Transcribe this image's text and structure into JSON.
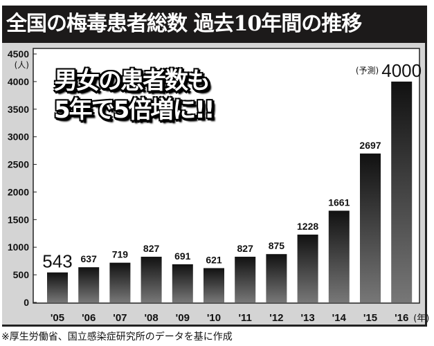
{
  "chart_data": {
    "type": "bar",
    "title": "全国の梅毒患者総数 過去10年間の推移",
    "ylabel": "(人)",
    "xlabel": "(年)",
    "categories": [
      "'05",
      "'06",
      "'07",
      "'08",
      "'09",
      "'10",
      "'11",
      "'12",
      "'13",
      "'14",
      "'15",
      "'16"
    ],
    "values": [
      543,
      637,
      719,
      827,
      691,
      621,
      827,
      875,
      1228,
      1661,
      2697,
      4000
    ],
    "ylim": [
      0,
      4500
    ],
    "yticks": [
      0,
      500,
      1000,
      1500,
      2000,
      2500,
      3000,
      3500,
      4000,
      4500
    ],
    "forecast_label": "(予測)",
    "callout": [
      "男女の患者数も",
      "5年で5倍増に!!"
    ],
    "grid": false,
    "bar_color": "#1e1e1e"
  },
  "source": "※厚生労働省、国立感染症研究所のデータを基に作成"
}
